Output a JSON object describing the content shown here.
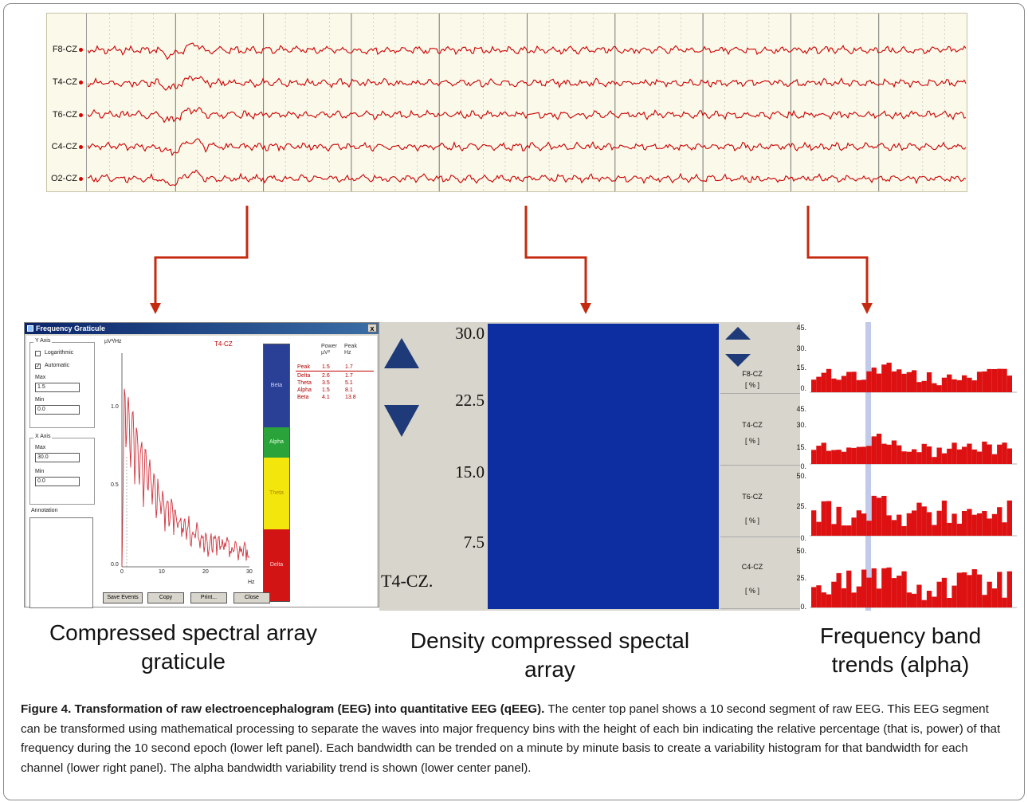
{
  "eeg": {
    "channels": [
      "F8-CZ",
      "T4-CZ",
      "T6-CZ",
      "C4-CZ",
      "O2-CZ"
    ],
    "trace_color": "#cc0000"
  },
  "graticule_window": {
    "title": "Frequency Graticule",
    "close": "x",
    "y_axis": {
      "legend": "Y Axis",
      "logarithmic_label": "Logarithmic",
      "logarithmic_checked": false,
      "automatic_label": "Automatic",
      "automatic_checked": true,
      "max_label": "Max",
      "max_value": "1.5",
      "min_label": "Min",
      "min_value": "0.0"
    },
    "x_axis": {
      "legend": "X Axis",
      "max_label": "Max",
      "max_value": "30.0",
      "min_label": "Min",
      "min_value": "0.0"
    },
    "annotation_label": "Annotation",
    "plot": {
      "unit_label": "µV²/Hz",
      "channel": "T4-CZ",
      "y_ticks": [
        "1.0",
        "0.5",
        "0.0"
      ],
      "x_ticks": [
        "0",
        "10",
        "20",
        "30"
      ],
      "x_unit": "Hz"
    },
    "bands": [
      "Beta",
      "Alpha",
      "Theta",
      "Delta"
    ],
    "band_colors": [
      "#2a3f96",
      "#2aa33a",
      "#f2e60c",
      "#d21414"
    ],
    "table": {
      "headers": [
        [
          "Power",
          "µV²"
        ],
        [
          "Peak",
          "Hz"
        ]
      ],
      "rows": [
        {
          "name": "Peak",
          "power": "1.5",
          "peak": "1.7"
        },
        {
          "name": "Delta",
          "power": "2.6",
          "peak": "1.7"
        },
        {
          "name": "Theta",
          "power": "3.5",
          "peak": "5.1"
        },
        {
          "name": "Alpha",
          "power": "1.5",
          "peak": "8.1"
        },
        {
          "name": "Beta",
          "power": "4.1",
          "peak": "13.8"
        }
      ]
    },
    "buttons": [
      "Save Events",
      "Copy",
      "Print...",
      "Close"
    ]
  },
  "dcsa": {
    "y_ticks": [
      "30.0",
      "22.5",
      "15.0",
      "7.5"
    ],
    "channel": "T4-CZ."
  },
  "trends": {
    "rows": [
      {
        "channel": "F8-CZ",
        "unit": "[ % ]",
        "ticks": [
          "45.",
          "30.",
          "15.",
          "0."
        ]
      },
      {
        "channel": "T4-CZ",
        "unit": "[ % ]",
        "ticks": [
          "45.",
          "30.",
          "15.",
          "0."
        ]
      },
      {
        "channel": "T6-CZ",
        "unit": "[ % ]",
        "ticks": [
          "50.",
          "25.",
          "0."
        ]
      },
      {
        "channel": "C4-CZ",
        "unit": "[ % ]",
        "ticks": [
          "50.",
          "25.",
          "0."
        ]
      }
    ],
    "bar_color": "#dd1111",
    "highlight_color": "#8e9fd6"
  },
  "labels": {
    "left": "Compressed spectral array graticule",
    "center": "Density compressed spectal array",
    "right": "Frequency band trends (alpha)"
  },
  "caption": {
    "title": "Figure 4. Transformation of raw electroencephalogram (EEG) into quantitative EEG (qEEG).",
    "body": " The center top panel shows a 10 second segment of raw EEG. This EEG segment can be transformed using mathematical processing to separate the waves into major frequency bins with the height of each bin indicating the relative percentage (that is, power) of that frequency during the 10 second epoch (lower left panel). Each bandwidth can be trended on a minute by minute basis to create a variability histogram for that bandwidth for each channel (lower right panel). The alpha bandwidth variability trend is shown (lower center panel)."
  }
}
